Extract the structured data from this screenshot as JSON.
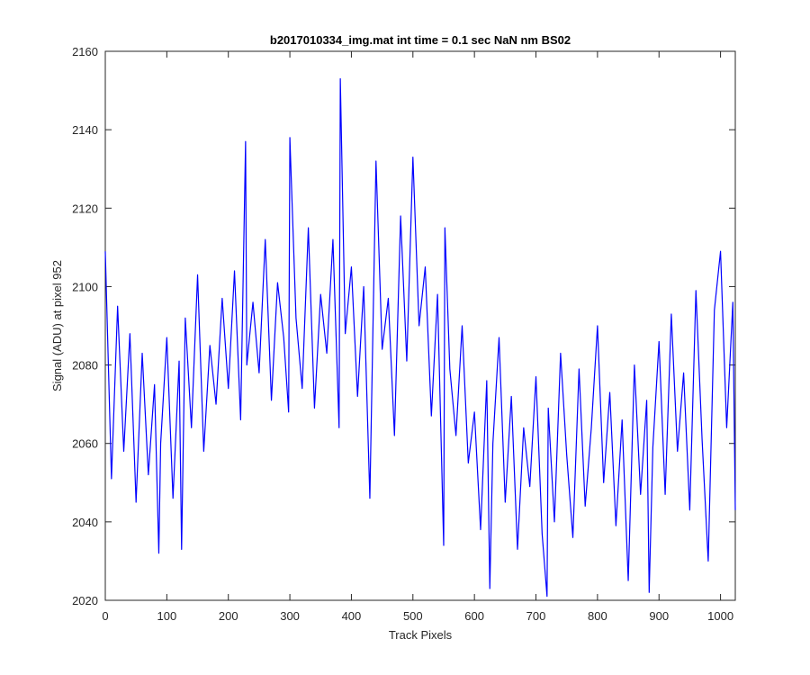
{
  "chart_data": {
    "type": "line",
    "title": "b2017010334_img.mat int time = 0.1 sec  NaN nm BS02",
    "xlabel": "Track Pixels",
    "ylabel": "Signal (ADU) at pixel 952",
    "xlim": [
      0,
      1024
    ],
    "ylim": [
      2020,
      2160
    ],
    "xticks": [
      0,
      100,
      200,
      300,
      400,
      500,
      600,
      700,
      800,
      900,
      1000
    ],
    "yticks": [
      2020,
      2040,
      2060,
      2080,
      2100,
      2120,
      2140,
      2160
    ],
    "grid": false,
    "legend": "none",
    "line_color": "#0000ff",
    "series": [
      {
        "points_note_free": true,
        "x": [
          0,
          10,
          20,
          30,
          40,
          50,
          60,
          70,
          80,
          87,
          90,
          100,
          110,
          120,
          124,
          130,
          140,
          150,
          160,
          170,
          180,
          190,
          200,
          210,
          220,
          228,
          230,
          240,
          250,
          260,
          270,
          280,
          290,
          298,
          300,
          310,
          320,
          330,
          340,
          350,
          360,
          370,
          380,
          382,
          390,
          400,
          410,
          420,
          430,
          440,
          450,
          460,
          470,
          480,
          490,
          500,
          510,
          520,
          530,
          540,
          550,
          552,
          560,
          570,
          580,
          590,
          600,
          610,
          620,
          625,
          630,
          640,
          650,
          660,
          670,
          680,
          690,
          700,
          710,
          718,
          720,
          730,
          740,
          750,
          760,
          770,
          780,
          790,
          800,
          810,
          820,
          830,
          840,
          850,
          860,
          870,
          880,
          884,
          890,
          900,
          910,
          920,
          930,
          940,
          950,
          960,
          970,
          980,
          990,
          1000,
          1010,
          1020,
          1024
        ],
        "y": [
          2109,
          2051,
          2095,
          2058,
          2088,
          2045,
          2083,
          2052,
          2075,
          2032,
          2060,
          2087,
          2046,
          2081,
          2033,
          2092,
          2064,
          2103,
          2058,
          2085,
          2070,
          2097,
          2074,
          2104,
          2066,
          2137,
          2080,
          2096,
          2078,
          2112,
          2071,
          2101,
          2087,
          2068,
          2138,
          2092,
          2074,
          2115,
          2069,
          2098,
          2083,
          2112,
          2064,
          2153,
          2088,
          2105,
          2072,
          2100,
          2046,
          2132,
          2084,
          2097,
          2062,
          2118,
          2081,
          2133,
          2090,
          2105,
          2067,
          2098,
          2034,
          2115,
          2079,
          2062,
          2090,
          2055,
          2068,
          2038,
          2076,
          2023,
          2060,
          2087,
          2045,
          2072,
          2033,
          2064,
          2049,
          2077,
          2037,
          2021,
          2069,
          2040,
          2083,
          2057,
          2036,
          2079,
          2044,
          2064,
          2090,
          2050,
          2073,
          2039,
          2066,
          2025,
          2080,
          2047,
          2071,
          2022,
          2059,
          2086,
          2047,
          2093,
          2058,
          2078,
          2043,
          2099,
          2061,
          2030,
          2094,
          2109,
          2064,
          2096,
          2043
        ]
      }
    ]
  }
}
